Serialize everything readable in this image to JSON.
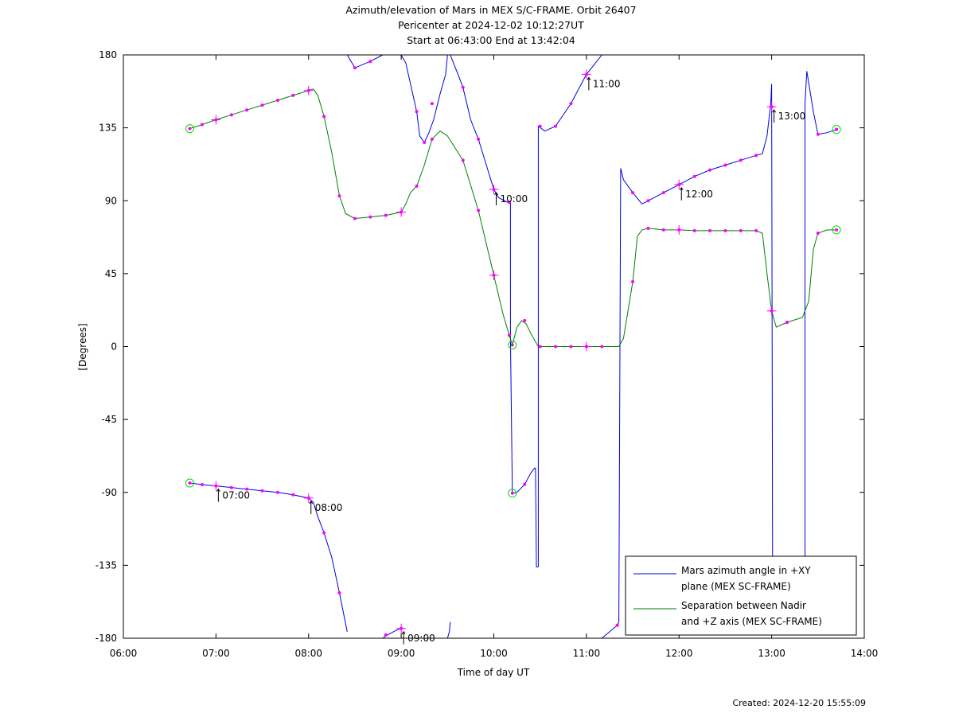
{
  "title_lines": [
    "Azimuth/elevation of Mars in MEX S/C-FRAME.  Orbit 26407",
    "Pericenter at 2024-12-02 10:12:27UT",
    "Start at 06:43:00 End at 13:42:04"
  ],
  "created": "Created: 2024-12-20 15:55:09",
  "colors": {
    "azimuth": "#0000e0",
    "separation": "#007f00",
    "marker": "#ff00ff",
    "endpoint": "#00dd00"
  },
  "chart_data": {
    "type": "line",
    "xlabel": "Time of day UT",
    "ylabel": "[Degrees]",
    "xlim": [
      6,
      14
    ],
    "ylim": [
      -180,
      180
    ],
    "xticks": [
      6,
      7,
      8,
      9,
      10,
      11,
      12,
      13,
      14
    ],
    "xtick_labels": [
      "06:00",
      "07:00",
      "08:00",
      "09:00",
      "10:00",
      "11:00",
      "12:00",
      "13:00",
      "14:00"
    ],
    "yticks": [
      180,
      135,
      90,
      45,
      0,
      -45,
      -90,
      -135,
      -180
    ],
    "ytick_labels": [
      "180",
      "135",
      "90",
      "45",
      "0",
      "-45",
      "-90",
      "-135",
      "-180"
    ],
    "legend_position": "bottom-right",
    "series": [
      {
        "name": "Mars azimuth angle in +XY plane (MEX SC-FRAME)",
        "legend_lines": [
          "Mars azimuth angle in +XY",
          "plane (MEX SC-FRAME)"
        ],
        "segments": [
          [
            [
              6.717,
              -84.2
            ],
            [
              6.85,
              -85.2
            ],
            [
              7.0,
              -86
            ],
            [
              7.167,
              -87
            ],
            [
              7.333,
              -88
            ],
            [
              7.5,
              -89
            ],
            [
              7.667,
              -90
            ],
            [
              7.833,
              -91.5
            ],
            [
              8.0,
              -93.5
            ],
            [
              8.05,
              -96
            ],
            [
              8.1,
              -105
            ],
            [
              8.167,
              -115
            ],
            [
              8.25,
              -130
            ],
            [
              8.333,
              -152
            ],
            [
              8.417,
              -176
            ]
          ],
          [
            [
              8.417,
              180
            ],
            [
              8.5,
              172
            ],
            [
              8.667,
              176
            ],
            [
              8.8,
              180
            ]
          ],
          [
            [
              8.8,
              -180
            ],
            [
              8.85,
              -178
            ],
            [
              8.95,
              -175
            ],
            [
              9.0,
              -174
            ]
          ],
          [
            [
              9.0,
              180
            ],
            [
              9.05,
              175
            ],
            [
              9.167,
              145
            ],
            [
              9.2,
              130
            ],
            [
              9.25,
              126
            ],
            [
              9.3,
              132
            ],
            [
              9.35,
              140
            ],
            [
              9.42,
              156
            ],
            [
              9.48,
              168
            ],
            [
              9.5,
              180
            ]
          ],
          [
            [
              9.5,
              -180
            ],
            [
              9.52,
              -176
            ],
            [
              9.53,
              -170
            ]
          ],
          [
            [
              9.53,
              180
            ],
            [
              9.6,
              170
            ],
            [
              9.667,
              160
            ],
            [
              9.75,
              140
            ],
            [
              9.833,
              128
            ],
            [
              10.0,
              97
            ],
            [
              10.05,
              92
            ],
            [
              10.15,
              89
            ],
            [
              10.18,
              89
            ],
            [
              10.18,
              5
            ]
          ],
          [
            [
              10.18,
              5
            ],
            [
              10.2,
              -90.5
            ],
            [
              10.25,
              -90
            ],
            [
              10.333,
              -85
            ],
            [
              10.4,
              -78
            ],
            [
              10.44,
              -75
            ],
            [
              10.45,
              -75
            ],
            [
              10.46,
              -136
            ],
            [
              10.48,
              -136
            ]
          ],
          [
            [
              10.48,
              -136
            ],
            [
              10.48,
              136
            ],
            [
              10.55,
              133
            ],
            [
              10.667,
              136
            ],
            [
              10.833,
              150
            ],
            [
              11.0,
              168
            ],
            [
              11.167,
              180
            ]
          ],
          [
            [
              11.167,
              -180
            ],
            [
              11.25,
              -176
            ],
            [
              11.333,
              -172
            ],
            [
              11.35,
              -170
            ]
          ],
          [
            [
              11.35,
              -170
            ],
            [
              11.37,
              110
            ],
            [
              11.4,
              103
            ],
            [
              11.5,
              95
            ],
            [
              11.6,
              88
            ],
            [
              11.667,
              90
            ],
            [
              11.833,
              95
            ],
            [
              12.0,
              100
            ],
            [
              12.167,
              105
            ],
            [
              12.333,
              109
            ],
            [
              12.5,
              112
            ],
            [
              12.667,
              115
            ],
            [
              12.833,
              118
            ],
            [
              12.9,
              119
            ],
            [
              12.95,
              130
            ],
            [
              12.99,
              150
            ],
            [
              13.0,
              162
            ]
          ],
          [
            [
              13.0,
              162
            ],
            [
              13.01,
              -140
            ],
            [
              13.03,
              -130
            ]
          ],
          [
            [
              13.03,
              -130
            ],
            [
              13.36,
              -130
            ],
            [
              13.36,
              150
            ],
            [
              13.38,
              170
            ],
            [
              13.45,
              145
            ],
            [
              13.5,
              131
            ],
            [
              13.6,
              132
            ],
            [
              13.7,
              134
            ]
          ]
        ],
        "color": "#0000e0"
      },
      {
        "name": "Separation between Nadir and +Z axis (MEX SC-FRAME)",
        "legend_lines": [
          "Separation between Nadir",
          "and +Z axis (MEX SC-FRAME)"
        ],
        "segments": [
          [
            [
              6.717,
              134.5
            ],
            [
              6.85,
              137
            ],
            [
              7.0,
              140
            ],
            [
              7.167,
              143
            ],
            [
              7.333,
              146
            ],
            [
              7.5,
              149
            ],
            [
              7.667,
              152
            ],
            [
              7.833,
              155
            ],
            [
              8.0,
              158
            ],
            [
              8.05,
              159
            ],
            [
              8.1,
              155
            ],
            [
              8.167,
              142
            ],
            [
              8.25,
              120
            ],
            [
              8.333,
              93
            ],
            [
              8.4,
              82
            ],
            [
              8.5,
              79
            ],
            [
              8.667,
              80
            ],
            [
              8.833,
              81
            ],
            [
              9.0,
              83
            ],
            [
              9.05,
              88
            ],
            [
              9.1,
              95
            ],
            [
              9.167,
              99
            ],
            [
              9.25,
              112
            ],
            [
              9.333,
              128
            ],
            [
              9.42,
              133
            ],
            [
              9.5,
              130
            ],
            [
              9.667,
              115
            ],
            [
              9.833,
              84
            ],
            [
              10.0,
              44
            ],
            [
              10.1,
              20
            ],
            [
              10.167,
              7
            ],
            [
              10.2,
              1
            ],
            [
              10.25,
              12
            ],
            [
              10.3,
              16
            ],
            [
              10.35,
              14
            ],
            [
              10.4,
              8
            ],
            [
              10.48,
              0
            ],
            [
              10.667,
              0
            ],
            [
              10.833,
              0
            ],
            [
              11.0,
              0
            ],
            [
              11.167,
              0
            ],
            [
              11.35,
              0
            ],
            [
              11.4,
              5
            ],
            [
              11.5,
              40
            ],
            [
              11.55,
              68
            ],
            [
              11.6,
              72
            ],
            [
              11.667,
              73
            ],
            [
              11.833,
              72
            ],
            [
              12.0,
              72
            ],
            [
              12.167,
              71.5
            ],
            [
              12.333,
              71.5
            ],
            [
              12.5,
              71.5
            ],
            [
              12.667,
              71.5
            ],
            [
              12.833,
              71.5
            ],
            [
              12.9,
              70
            ],
            [
              12.95,
              45
            ],
            [
              13.0,
              22
            ],
            [
              13.05,
              12
            ],
            [
              13.167,
              15
            ],
            [
              13.333,
              18
            ],
            [
              13.4,
              28
            ],
            [
              13.45,
              60
            ],
            [
              13.5,
              70
            ],
            [
              13.6,
              72
            ],
            [
              13.7,
              72
            ]
          ]
        ],
        "color": "#007f00"
      }
    ],
    "markers": [
      [
        6.85,
        -85.2
      ],
      [
        7.167,
        -87
      ],
      [
        7.333,
        -88
      ],
      [
        7.5,
        -89
      ],
      [
        7.667,
        -90
      ],
      [
        7.833,
        -91.5
      ],
      [
        8.167,
        -115
      ],
      [
        8.333,
        -152
      ],
      [
        8.5,
        172
      ],
      [
        8.667,
        176
      ],
      [
        8.833,
        -178
      ],
      [
        9.167,
        145
      ],
      [
        9.25,
        126
      ],
      [
        9.333,
        150
      ],
      [
        9.667,
        160
      ],
      [
        9.833,
        128
      ],
      [
        10.167,
        89
      ],
      [
        10.333,
        -85
      ],
      [
        10.5,
        136
      ],
      [
        10.667,
        136
      ],
      [
        10.833,
        150
      ],
      [
        11.333,
        -172
      ],
      [
        11.5,
        95
      ],
      [
        11.667,
        90
      ],
      [
        11.833,
        95
      ],
      [
        12.167,
        105
      ],
      [
        12.333,
        109
      ],
      [
        12.5,
        112
      ],
      [
        12.667,
        115
      ],
      [
        12.833,
        118
      ],
      [
        13.167,
        15
      ],
      [
        13.5,
        131
      ],
      [
        13.7,
        134
      ],
      [
        6.85,
        137
      ],
      [
        7.167,
        143
      ],
      [
        7.333,
        146
      ],
      [
        7.5,
        149
      ],
      [
        7.667,
        152
      ],
      [
        7.833,
        155
      ],
      [
        8.167,
        142
      ],
      [
        8.333,
        93
      ],
      [
        8.5,
        79
      ],
      [
        8.667,
        80
      ],
      [
        8.833,
        81
      ],
      [
        9.167,
        99
      ],
      [
        9.333,
        128
      ],
      [
        9.667,
        115
      ],
      [
        9.833,
        84
      ],
      [
        10.167,
        7
      ],
      [
        10.333,
        16
      ],
      [
        10.5,
        0
      ],
      [
        10.667,
        0
      ],
      [
        10.833,
        0
      ],
      [
        11.167,
        0
      ],
      [
        11.5,
        40
      ],
      [
        11.667,
        73
      ],
      [
        11.833,
        72
      ],
      [
        12.167,
        71.5
      ],
      [
        12.333,
        71.5
      ],
      [
        12.5,
        71.5
      ],
      [
        12.667,
        71.5
      ],
      [
        12.833,
        71.5
      ],
      [
        13.167,
        15
      ],
      [
        13.5,
        70
      ]
    ],
    "hour_markers": [
      [
        7.0,
        -86
      ],
      [
        8.0,
        -93.5
      ],
      [
        9.0,
        -174
      ],
      [
        10.0,
        97
      ],
      [
        11.0,
        168
      ],
      [
        12.0,
        100
      ],
      [
        13.0,
        148
      ],
      [
        7.0,
        140
      ],
      [
        8.0,
        158
      ],
      [
        9.0,
        83
      ],
      [
        10.0,
        44
      ],
      [
        11.0,
        0
      ],
      [
        12.0,
        72
      ],
      [
        13.0,
        22
      ]
    ],
    "endpoints": [
      [
        6.717,
        -84.2
      ],
      [
        6.717,
        134.5
      ],
      [
        10.2,
        -90.5
      ],
      [
        10.2,
        1
      ],
      [
        13.7,
        134
      ],
      [
        13.7,
        72
      ]
    ],
    "annotations": [
      {
        "x": 7.0,
        "y": -86,
        "text": "07:00"
      },
      {
        "x": 8.0,
        "y": -93.5,
        "text": "08:00"
      },
      {
        "x": 9.0,
        "y": -174,
        "text": "09:00"
      },
      {
        "x": 10.0,
        "y": 97,
        "text": "10:00"
      },
      {
        "x": 11.0,
        "y": 168,
        "text": "11:00"
      },
      {
        "x": 12.0,
        "y": 100,
        "text": "12:00"
      },
      {
        "x": 13.0,
        "y": 148,
        "text": "13:00"
      }
    ]
  }
}
